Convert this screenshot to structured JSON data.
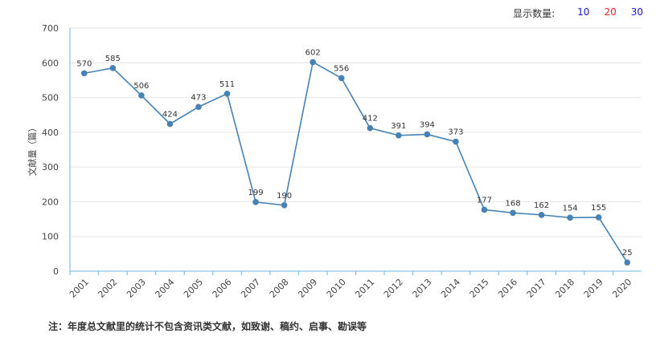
{
  "display_count": {
    "label": "显示数量:",
    "options": [
      {
        "label": "10",
        "color": "#1a1ad6"
      },
      {
        "label": "20",
        "color": "#e8262a"
      },
      {
        "label": "30",
        "color": "#1a1ad6"
      }
    ]
  },
  "note": "注：年度总文献里的统计不包含资讯类文献，如致谢、稿约、启事、勘误等",
  "chart_data": {
    "type": "line",
    "title": "",
    "xlabel": "",
    "ylabel": "文献量（篇）",
    "ylim": [
      0,
      700
    ],
    "yticks": [
      0,
      100,
      200,
      300,
      400,
      500,
      600,
      700
    ],
    "grid": true,
    "line_color": "#4682b4",
    "categories": [
      "2001",
      "2002",
      "2003",
      "2004",
      "2005",
      "2006",
      "2007",
      "2008",
      "2009",
      "2010",
      "2011",
      "2012",
      "2013",
      "2014",
      "2015",
      "2016",
      "2017",
      "2018",
      "2019",
      "2020"
    ],
    "values": [
      570,
      585,
      506,
      424,
      473,
      511,
      199,
      190,
      602,
      556,
      412,
      391,
      394,
      373,
      177,
      168,
      162,
      154,
      155,
      25
    ]
  }
}
